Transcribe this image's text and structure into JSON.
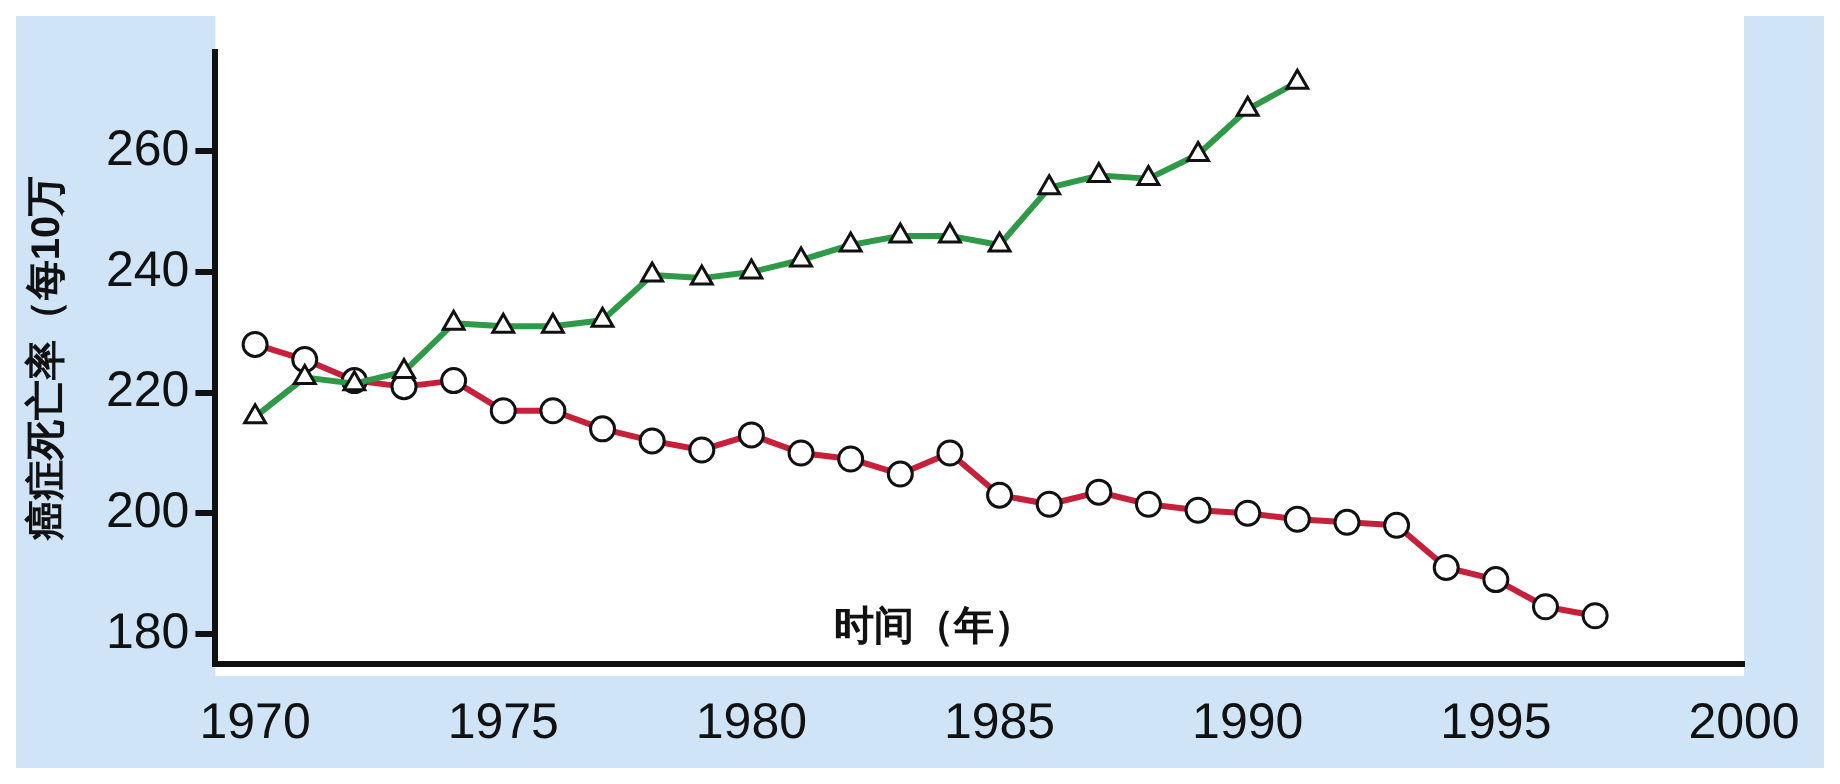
{
  "chart_data": {
    "type": "line",
    "xlabel": "时间（年）",
    "ylabel": "癌症死亡率（每10万",
    "x": [
      1970,
      1971,
      1972,
      1973,
      1974,
      1975,
      1976,
      1977,
      1978,
      1979,
      1980,
      1981,
      1982,
      1983,
      1984,
      1985,
      1986,
      1987,
      1988,
      1989,
      1990,
      1991,
      1992,
      1993,
      1994,
      1995,
      1996,
      1997
    ],
    "series": [
      {
        "color": "#2e9a48",
        "marker": "triangle",
        "values": [
          216,
          222.5,
          221.5,
          223.5,
          231.5,
          231,
          231,
          232,
          239.5,
          239,
          240,
          242,
          244.5,
          246,
          246,
          244.5,
          254,
          256,
          255.5,
          259.5,
          267,
          271.5,
          null,
          null,
          null,
          null,
          null,
          null
        ]
      },
      {
        "color": "#c8203a",
        "marker": "circle",
        "values": [
          228,
          225.5,
          222,
          221,
          222,
          217,
          217,
          214,
          212,
          210.5,
          213,
          210,
          209,
          206.5,
          210,
          203,
          201.5,
          203.5,
          201.5,
          200.5,
          200,
          199,
          198.5,
          198,
          191,
          189,
          184.5,
          183
        ]
      }
    ],
    "xlim": [
      1969.2,
      2000
    ],
    "xticks": [
      1970,
      1975,
      1980,
      1985,
      1990,
      1995,
      2000
    ],
    "ylim": [
      175,
      276.5
    ],
    "yticks": [
      180,
      200,
      220,
      240,
      260
    ],
    "grid": false,
    "legend": false,
    "line_style": "solid"
  }
}
